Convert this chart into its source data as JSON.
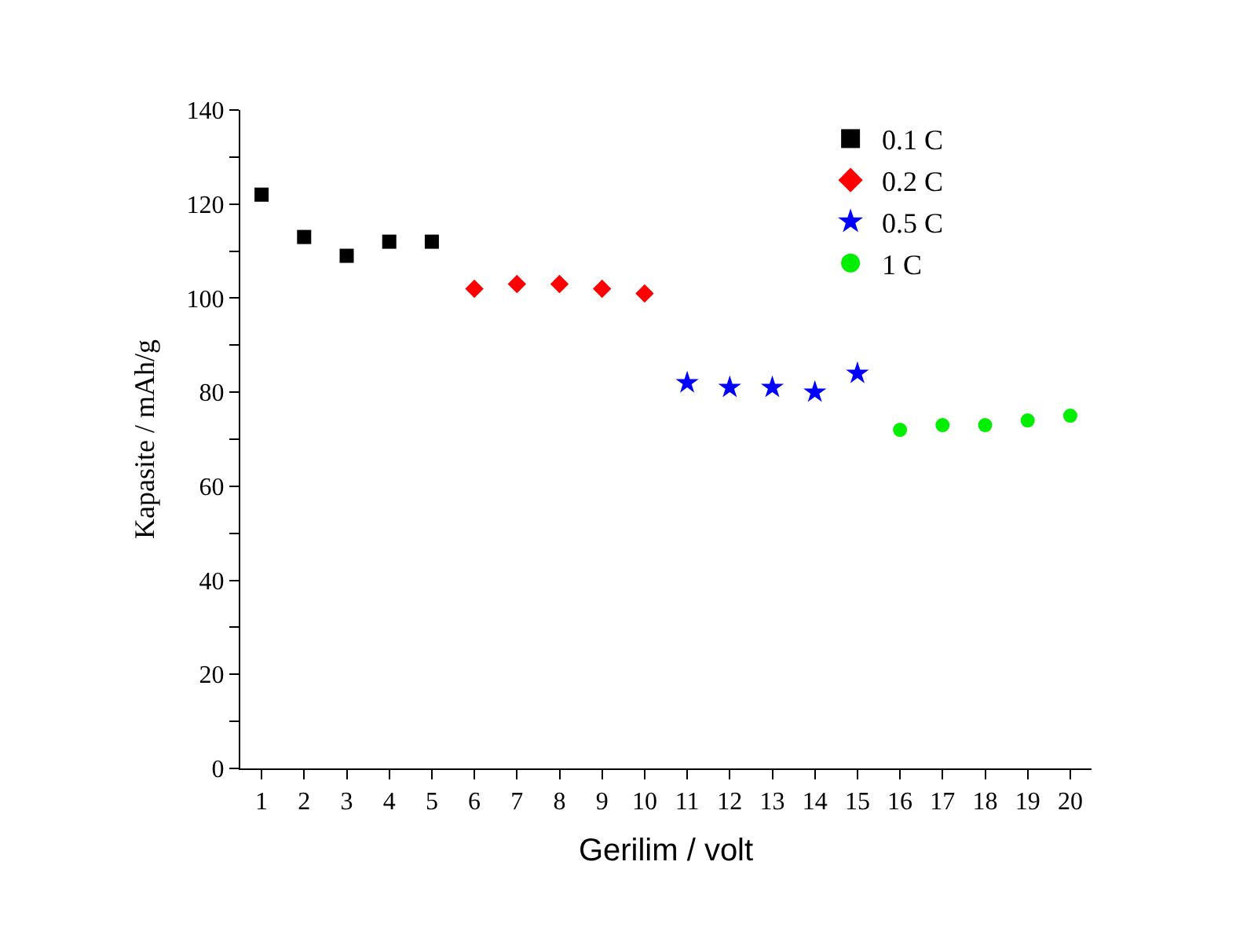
{
  "chart_data": {
    "type": "scatter",
    "xlabel": "Gerilim / volt",
    "ylabel": "Kapasite / mAh/g",
    "xlim": [
      0.5,
      20.5
    ],
    "xticks": [
      1,
      2,
      3,
      4,
      5,
      6,
      7,
      8,
      9,
      10,
      11,
      12,
      13,
      14,
      15,
      16,
      17,
      18,
      19,
      20
    ],
    "ylim": [
      0,
      140
    ],
    "yticks": [
      0,
      {
        "value": 10,
        "label": null
      },
      20,
      {
        "value": 30,
        "label": null
      },
      40,
      {
        "value": 50,
        "label": null
      },
      60,
      {
        "value": 70,
        "label": null
      },
      80,
      {
        "value": 90,
        "label": null
      },
      100,
      {
        "value": 110,
        "label": null
      },
      120,
      {
        "value": 130,
        "label": null
      },
      140
    ],
    "legend": "top right",
    "series": [
      {
        "name": "0.1 C",
        "color": "#000000",
        "marker": "square",
        "x": [
          1,
          2,
          3,
          4,
          5
        ],
        "values": [
          122,
          113,
          109,
          112,
          112
        ]
      },
      {
        "name": "0.2 C",
        "color": "#ff0000",
        "marker": "diamond",
        "x": [
          6,
          7,
          8,
          9,
          10
        ],
        "values": [
          102,
          103,
          103,
          102,
          101
        ]
      },
      {
        "name": "0.5 C",
        "color": "#0000ff",
        "marker": "star",
        "x": [
          11,
          12,
          13,
          14,
          15
        ],
        "values": [
          82,
          81,
          81,
          80,
          84
        ]
      },
      {
        "name": "1 C",
        "color": "#00ee00",
        "marker": "circle",
        "x": [
          16,
          17,
          18,
          19,
          20
        ],
        "values": [
          72,
          73,
          73,
          74,
          75
        ]
      }
    ]
  }
}
